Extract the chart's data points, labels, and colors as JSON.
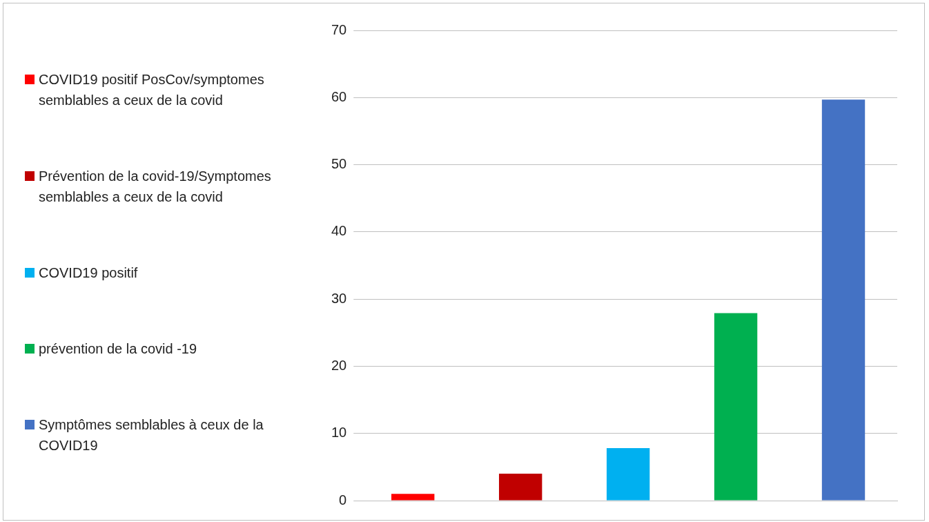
{
  "chart_data": {
    "type": "bar",
    "categories": [
      null,
      null,
      null,
      null,
      null
    ],
    "series": [
      {
        "name": "COVID19 positif PosCov/symptomes semblables a ceux de la covid",
        "color": "#ff0000",
        "values": [
          1,
          null,
          null,
          null,
          null
        ]
      },
      {
        "name": "Prévention de la covid-19/Symptomes semblables a ceux de la covid",
        "color": "#c00000",
        "values": [
          null,
          4,
          null,
          null,
          null
        ]
      },
      {
        "name": "COVID19 positif",
        "color": "#00b0f0",
        "values": [
          null,
          null,
          7.8,
          null,
          null
        ]
      },
      {
        "name": "prévention de la covid -19",
        "color": "#00b050",
        "values": [
          null,
          null,
          null,
          27.9,
          null
        ]
      },
      {
        "name": "Symptômes semblables à ceux de la COVID19",
        "color": "#4472c4",
        "values": [
          null,
          null,
          null,
          null,
          59.7
        ]
      }
    ],
    "ylim": [
      0,
      70
    ],
    "yticks": [
      0,
      10,
      20,
      30,
      40,
      50,
      60,
      70
    ],
    "grid": "y",
    "legend": "left"
  }
}
